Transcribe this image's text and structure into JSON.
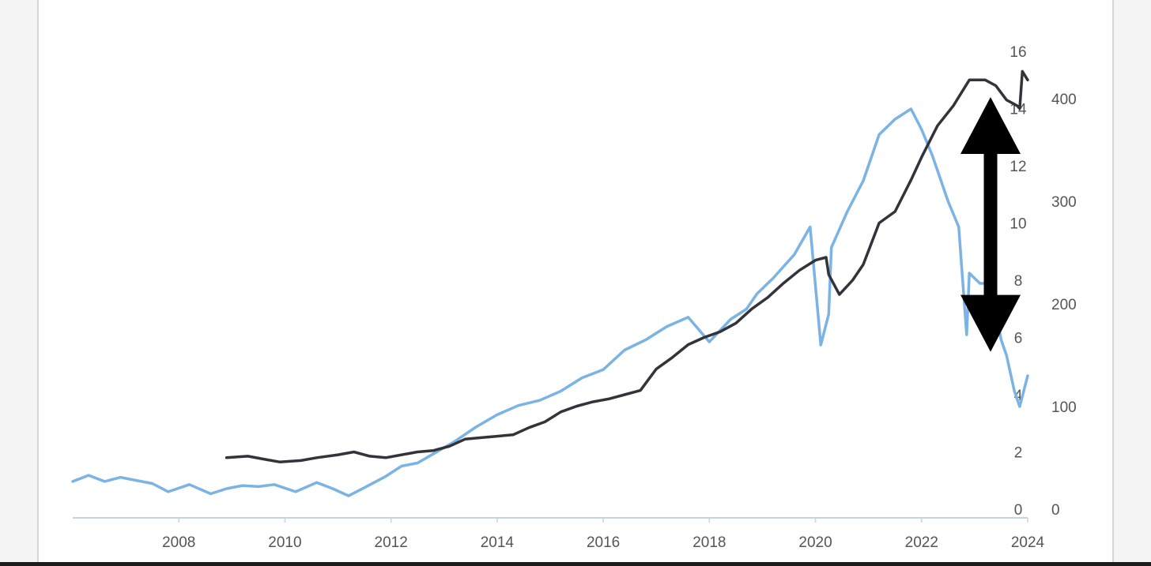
{
  "chart_data": {
    "type": "line",
    "title": "",
    "xlabel": "",
    "ylabel": "",
    "xlim": [
      2006.0,
      2024.0
    ],
    "x_ticks": [
      "2008",
      "2010",
      "2012",
      "2014",
      "2016",
      "2018",
      "2020",
      "2022",
      "2024"
    ],
    "y_left": {
      "ylim": [
        0,
        16
      ],
      "ticks": [
        "0",
        "2",
        "4",
        "6",
        "8",
        "10",
        "12",
        "14",
        "16"
      ]
    },
    "y_right": {
      "ylim": [
        0,
        450
      ],
      "ticks": [
        "0",
        "100",
        "200",
        "300",
        "400"
      ]
    },
    "grid": false,
    "legend": "none",
    "series": [
      {
        "axis": "right",
        "color": "#7ab3e4",
        "x": [
          2006.0,
          2006.3,
          2006.6,
          2006.9,
          2007.2,
          2007.5,
          2007.8,
          2008.2,
          2008.6,
          2008.9,
          2009.2,
          2009.5,
          2009.8,
          2010.2,
          2010.6,
          2010.9,
          2011.2,
          2011.5,
          2011.9,
          2012.2,
          2012.5,
          2012.8,
          2013.2,
          2013.6,
          2014.0,
          2014.4,
          2014.8,
          2015.2,
          2015.6,
          2016.0,
          2016.4,
          2016.8,
          2017.2,
          2017.6,
          2018.0,
          2018.4,
          2018.7,
          2018.9,
          2019.2,
          2019.6,
          2019.9,
          2020.1,
          2020.25,
          2020.3,
          2020.6,
          2020.9,
          2021.2,
          2021.5,
          2021.8,
          2022.0,
          2022.2,
          2022.5,
          2022.7,
          2022.85,
          2022.9,
          2023.1,
          2023.3,
          2023.5,
          2023.6,
          2023.75,
          2023.85,
          2024.0
        ],
        "y": [
          27,
          33,
          27,
          31,
          28,
          25,
          17,
          24,
          15,
          20,
          23,
          22,
          24,
          17,
          26,
          20,
          13,
          21,
          32,
          42,
          45,
          54,
          66,
          80,
          92,
          101,
          106,
          115,
          128,
          136,
          155,
          165,
          178,
          187,
          163,
          185,
          195,
          210,
          225,
          248,
          275,
          160,
          190,
          255,
          290,
          320,
          365,
          380,
          390,
          370,
          345,
          300,
          275,
          170,
          230,
          220,
          220,
          165,
          150,
          115,
          100,
          130
        ]
      },
      {
        "axis": "left",
        "color": "#33333b",
        "x": [
          2008.9,
          2009.3,
          2009.6,
          2009.9,
          2010.3,
          2010.6,
          2011.0,
          2011.3,
          2011.6,
          2011.9,
          2012.2,
          2012.5,
          2012.8,
          2013.1,
          2013.4,
          2013.7,
          2014.0,
          2014.3,
          2014.6,
          2014.9,
          2015.2,
          2015.5,
          2015.8,
          2016.1,
          2016.4,
          2016.7,
          2017.0,
          2017.3,
          2017.6,
          2017.9,
          2018.2,
          2018.5,
          2018.8,
          2019.1,
          2019.4,
          2019.7,
          2020.0,
          2020.2,
          2020.25,
          2020.45,
          2020.7,
          2020.9,
          2021.2,
          2021.5,
          2021.8,
          2022.0,
          2022.3,
          2022.6,
          2022.9,
          2023.2,
          2023.4,
          2023.6,
          2023.8,
          2023.85,
          2023.9,
          2024.0
        ],
        "y": [
          1.8,
          1.85,
          1.75,
          1.65,
          1.7,
          1.8,
          1.9,
          2.0,
          1.85,
          1.8,
          1.9,
          2.0,
          2.05,
          2.2,
          2.45,
          2.5,
          2.55,
          2.6,
          2.85,
          3.05,
          3.4,
          3.6,
          3.75,
          3.85,
          4.0,
          4.15,
          4.9,
          5.3,
          5.75,
          6.0,
          6.2,
          6.5,
          7.0,
          7.4,
          7.9,
          8.35,
          8.7,
          8.8,
          8.2,
          7.5,
          8.0,
          8.55,
          10.0,
          10.4,
          11.5,
          12.3,
          13.4,
          14.1,
          15.0,
          15.0,
          14.8,
          14.3,
          14.1,
          14.0,
          15.3,
          15.0
        ]
      }
    ],
    "annotation": {
      "type": "double-arrow",
      "color": "#000000",
      "x": 2023.3,
      "y_top": 14.4,
      "y_bottom": 5.5,
      "axis": "left"
    }
  }
}
